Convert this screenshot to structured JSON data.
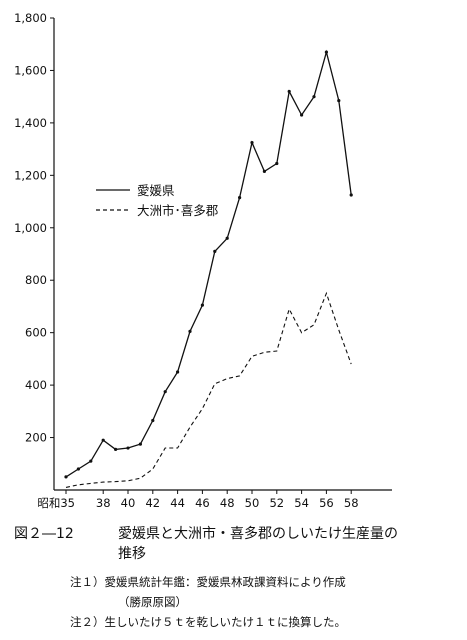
{
  "chart_data": {
    "type": "line",
    "x": [
      "35",
      "36",
      "37",
      "38",
      "39",
      "40",
      "41",
      "42",
      "43",
      "44",
      "45",
      "46",
      "47",
      "48",
      "49",
      "50",
      "51",
      "52",
      "53",
      "54",
      "55",
      "56",
      "57",
      "58"
    ],
    "x_tick_labels": [
      "昭和35",
      "38",
      "40",
      "42",
      "44",
      "46",
      "48",
      "50",
      "52",
      "54",
      "56",
      "58"
    ],
    "x_tick_positions": [
      "35",
      "38",
      "40",
      "42",
      "44",
      "46",
      "48",
      "50",
      "52",
      "54",
      "56",
      "58"
    ],
    "ylim": [
      0,
      1800
    ],
    "y_ticks": [
      200,
      400,
      600,
      800,
      1000,
      1200,
      1400,
      1600,
      1800
    ],
    "y_tick_labels": [
      "200",
      "400",
      "600",
      "800",
      "1,000",
      "1,200",
      "1,400",
      "1,600",
      "1,800"
    ],
    "series": [
      {
        "name": "愛媛県",
        "style": "solid",
        "values": [
          50,
          80,
          110,
          190,
          155,
          160,
          175,
          265,
          375,
          450,
          605,
          705,
          910,
          960,
          1115,
          1325,
          1215,
          1245,
          1520,
          1430,
          1500,
          1670,
          1485,
          1125
        ]
      },
      {
        "name": "大洲市･喜多郡",
        "style": "dashed",
        "values": [
          10,
          20,
          25,
          30,
          32,
          35,
          45,
          80,
          160,
          160,
          240,
          310,
          405,
          425,
          435,
          510,
          525,
          530,
          690,
          600,
          630,
          750,
          610,
          480
        ]
      }
    ],
    "legend_position": "middle-left",
    "grid": false,
    "title": "",
    "xlabel": "",
    "ylabel": ""
  },
  "caption": {
    "label": "図２―12",
    "text": "愛媛県と大洲市・喜多郡のしいたけ生産量の推移"
  },
  "notes": [
    "注１）愛媛県統計年鑑：愛媛県林政課資料により作成",
    "（勝原原図）",
    "注２）生しいたけ５ｔを乾しいたけ１ｔに換算した。"
  ],
  "colors": {
    "line": "#111111",
    "text": "#111111"
  }
}
